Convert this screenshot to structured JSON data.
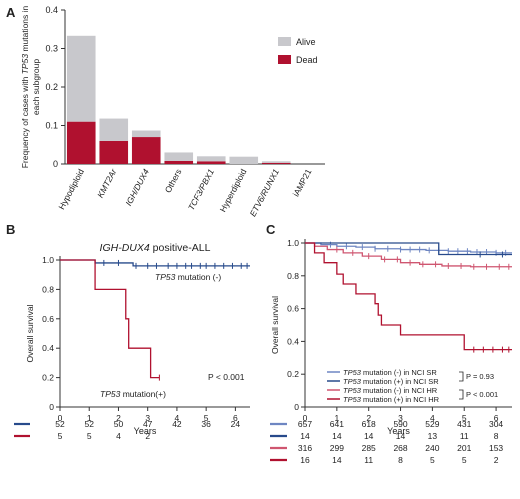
{
  "colors": {
    "alive": "#c8c8cc",
    "dead": "#b0112f",
    "blue": "#274a8b",
    "lightblue": "#6e86c2",
    "lightred": "#cf5670",
    "axis": "#333333"
  },
  "chart_data": [
    {
      "panel": "A",
      "type": "bar",
      "stacked": true,
      "ylabel_lines": [
        "Frequency of cases with TP53 mutations in",
        "each subgroup"
      ],
      "ylim": [
        0,
        0.4
      ],
      "yticks": [
        "0",
        "0.1",
        "0.2",
        "0.3",
        "0.4"
      ],
      "categories": [
        "Hypodiploid",
        "KMT2Ar",
        "IGH/DUX4",
        "Others",
        "TCF3/PBX1",
        "Hyperdiploid",
        "ETV6/RUNX1",
        "iAMP21"
      ],
      "italic_categories": [
        "KMT2Ar",
        "IGH/DUX4",
        "TCF3/PBX1",
        "ETV6/RUNX1"
      ],
      "series": [
        {
          "name": "Dead",
          "color_key": "dead",
          "values": [
            0.11,
            0.06,
            0.07,
            0.008,
            0.007,
            0.0,
            0.003,
            0.0
          ]
        },
        {
          "name": "Alive",
          "color_key": "alive",
          "values": [
            0.223,
            0.058,
            0.017,
            0.022,
            0.013,
            0.019,
            0.004,
            0.0
          ]
        }
      ],
      "legend": [
        "Alive",
        "Dead"
      ],
      "legend_position": "top-right"
    },
    {
      "panel": "B",
      "type": "line",
      "title": "IGH-DUX4 positive-ALL",
      "xlabel": "Years",
      "ylabel": "Overall survival",
      "xlim": [
        0,
        6.5
      ],
      "ylim": [
        0,
        1.0
      ],
      "xticks": [
        "0",
        "1",
        "2",
        "3",
        "4",
        "5",
        "6"
      ],
      "yticks": [
        "0",
        "0.2",
        "0.4",
        "0.6",
        "0.8",
        "1.0"
      ],
      "series": [
        {
          "name": "TP53 mutation (-)",
          "color_key": "blue",
          "steps": [
            [
              0,
              1.0
            ],
            [
              1.2,
              0.98
            ],
            [
              2.5,
              0.96
            ]
          ],
          "end": 6.5,
          "censors": [
            1.5,
            2.0,
            2.6,
            3.0,
            3.3,
            3.7,
            4.0,
            4.3,
            4.5,
            4.8,
            5.0,
            5.3,
            5.6,
            5.9,
            6.2,
            6.4
          ]
        },
        {
          "name": "TP53 mutation(+)",
          "color_key": "dead",
          "steps": [
            [
              0,
              1.0
            ],
            [
              1.2,
              0.8
            ],
            [
              2.25,
              0.6
            ],
            [
              2.35,
              0.4
            ],
            [
              3.1,
              0.2
            ]
          ],
          "end": 3.4,
          "censors": [
            3.4
          ]
        }
      ],
      "annotations": {
        "neg_prefix": "TP53",
        "neg_suffix": " mutation (-)",
        "pos_prefix": "TP53",
        "pos_suffix": " mutation(+)",
        "pvalue": "P < 0.001"
      },
      "risk_table": {
        "rows": [
          {
            "color_key": "blue",
            "values": [
              "52",
              "52",
              "50",
              "47",
              "42",
              "36",
              "24"
            ]
          },
          {
            "color_key": "dead",
            "values": [
              "5",
              "5",
              "4",
              "2",
              "",
              "",
              ""
            ]
          }
        ]
      }
    },
    {
      "panel": "C",
      "type": "line",
      "xlabel": "Years",
      "ylabel": "Overall survival",
      "xlim": [
        0,
        6.5
      ],
      "ylim": [
        0,
        1.0
      ],
      "xticks": [
        "0",
        "1",
        "2",
        "3",
        "4",
        "5",
        "6"
      ],
      "yticks": [
        "0",
        "0.2",
        "0.4",
        "0.6",
        "0.8",
        "1.0"
      ],
      "series": [
        {
          "name": "TP53 mutation (-) in NCI SR",
          "color_key": "lightblue",
          "steps": [
            [
              0,
              1.0
            ],
            [
              0.5,
              0.99
            ],
            [
              1.0,
              0.98
            ],
            [
              1.6,
              0.975
            ],
            [
              2.2,
              0.965
            ],
            [
              3.0,
              0.96
            ],
            [
              3.8,
              0.955
            ],
            [
              4.5,
              0.95
            ],
            [
              5.2,
              0.945
            ],
            [
              6.0,
              0.94
            ]
          ],
          "end": 6.5,
          "censors": [
            0.8,
            1.3,
            1.8,
            2.2,
            2.6,
            3.0,
            3.3,
            3.6,
            3.9,
            4.2,
            4.5,
            4.8,
            5.1,
            5.4,
            5.7,
            6.0,
            6.3
          ]
        },
        {
          "name": "TP53 mutation (+) in NCI SR",
          "color_key": "blue",
          "steps": [
            [
              0,
              1.0
            ],
            [
              4.2,
              0.93
            ]
          ],
          "end": 6.5,
          "censors": [
            5.5,
            6.2
          ]
        },
        {
          "name": "TP53 mutation (-) in NCI HR",
          "color_key": "lightred",
          "steps": [
            [
              0,
              1.0
            ],
            [
              0.3,
              0.98
            ],
            [
              0.7,
              0.96
            ],
            [
              1.2,
              0.94
            ],
            [
              1.8,
              0.92
            ],
            [
              2.4,
              0.9
            ],
            [
              3.0,
              0.88
            ],
            [
              3.6,
              0.87
            ],
            [
              4.3,
              0.86
            ],
            [
              5.2,
              0.855
            ]
          ],
          "end": 6.5,
          "censors": [
            1.0,
            1.5,
            2.0,
            2.5,
            2.9,
            3.3,
            3.7,
            4.1,
            4.5,
            4.9,
            5.3,
            5.7,
            6.1,
            6.4
          ]
        },
        {
          "name": "TP53 mutation (+) in NCI HR",
          "color_key": "dead",
          "steps": [
            [
              0,
              1.0
            ],
            [
              0.3,
              0.94
            ],
            [
              0.6,
              0.88
            ],
            [
              1.0,
              0.81
            ],
            [
              1.2,
              0.75
            ],
            [
              1.6,
              0.69
            ],
            [
              2.2,
              0.63
            ],
            [
              2.3,
              0.56
            ],
            [
              2.4,
              0.5
            ],
            [
              3.0,
              0.44
            ],
            [
              5.0,
              0.35
            ]
          ],
          "end": 6.5,
          "censors": [
            5.3,
            5.6,
            5.9,
            6.2,
            6.4
          ]
        }
      ],
      "legend": [
        {
          "color_key": "lightblue",
          "prefix": "TP53",
          "suffix": " mutation (-) in NCI SR"
        },
        {
          "color_key": "blue",
          "prefix": "TP53",
          "suffix": " mutation (+) in NCI SR"
        },
        {
          "color_key": "lightred",
          "prefix": "TP53",
          "suffix": " mutation (-) in NCI HR"
        },
        {
          "color_key": "dead",
          "prefix": "TP53",
          "suffix": " mutation (+) in NCI HR"
        }
      ],
      "pvalues": [
        "P = 0.93",
        "P < 0.001"
      ],
      "risk_table": {
        "rows": [
          {
            "color_key": "lightblue",
            "values": [
              "657",
              "641",
              "618",
              "590",
              "529",
              "431",
              "304"
            ]
          },
          {
            "color_key": "blue",
            "values": [
              "14",
              "14",
              "14",
              "14",
              "13",
              "11",
              "8"
            ]
          },
          {
            "color_key": "lightred",
            "values": [
              "316",
              "299",
              "285",
              "268",
              "240",
              "201",
              "153"
            ]
          },
          {
            "color_key": "dead",
            "values": [
              "16",
              "14",
              "11",
              "8",
              "5",
              "5",
              "2"
            ]
          }
        ]
      }
    }
  ],
  "panel_labels": [
    "A",
    "B",
    "C"
  ]
}
